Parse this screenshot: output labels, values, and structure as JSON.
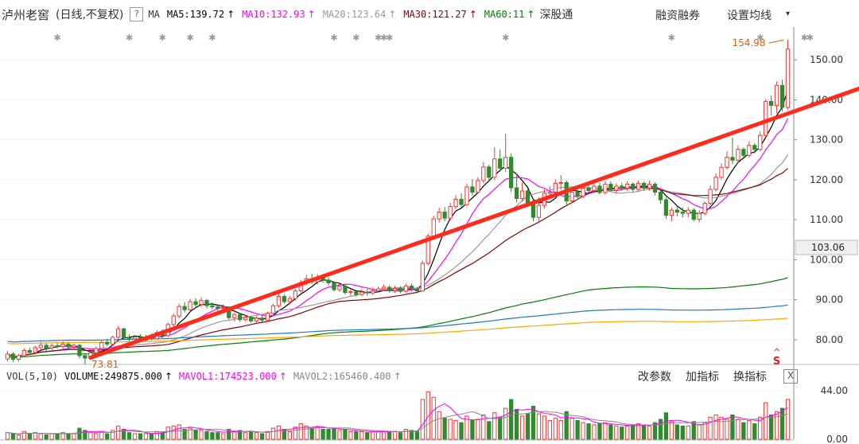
{
  "header": {
    "stock_name": "泸州老窖",
    "chart_mode": "(日线,不复权)",
    "help_label": "?",
    "ma_label": "MA",
    "ma_items": [
      {
        "label": "MA5:139.72",
        "color": "#000000"
      },
      {
        "label": "MA10:132.93",
        "color": "#ff00ff"
      },
      {
        "label": "MA20:123.64",
        "color": "#999999"
      },
      {
        "label": "MA30:121.27",
        "color": "#8b0000"
      },
      {
        "label": "MA60:11",
        "color": "#008000"
      }
    ],
    "arrow_glyph": "↑",
    "links": [
      "深股通",
      "融资融券",
      "设置均线"
    ],
    "caret": "▾"
  },
  "price_axis": {
    "ticks": [
      "150.00",
      "140.00",
      "130.00",
      "120.00",
      "110.00",
      "100.00",
      "90.00",
      "80.00"
    ],
    "current_price": "103.06"
  },
  "annotations": {
    "high_label": "154.98",
    "low_label": "73.81",
    "signal_marker": "S",
    "signal_caret": "^"
  },
  "volume_panel": {
    "items": [
      {
        "label": "VOL(5,10)",
        "color": "#333333"
      },
      {
        "label": "VOLUME:249875.000",
        "color": "#000000"
      },
      {
        "label": "MAVOL1:174523.000",
        "color": "#ff00ff"
      },
      {
        "label": "MAVOL2:165460.400",
        "color": "#888888"
      }
    ],
    "arrow_glyph": "↑",
    "actions": [
      "改参数",
      "加指标",
      "换指标"
    ],
    "close_label": "X",
    "axis_ticks": [
      "44.00",
      "0.00"
    ]
  },
  "chart_data": {
    "type": "candlestick",
    "symbol": "泸州老窖",
    "period": "日线",
    "price_axis": {
      "min": 75,
      "max": 157,
      "ticks": [
        80,
        90,
        100,
        110,
        120,
        130,
        140,
        150
      ]
    },
    "volume_axis": {
      "min": 0,
      "max": 49,
      "ticks": [
        0,
        44
      ]
    },
    "highest_price": 154.98,
    "lowest_price": 73.81,
    "current_price": 103.06,
    "trend_arrow": {
      "start": [
        15,
        75.5
      ],
      "end": [
        165,
        148
      ]
    },
    "candles": [
      {
        "o": 75.2,
        "c": 76.4,
        "h": 77.1,
        "l": 74.6,
        "v": 6
      },
      {
        "o": 76.4,
        "c": 75.1,
        "h": 76.9,
        "l": 74.4,
        "v": 5
      },
      {
        "o": 75.1,
        "c": 76.0,
        "h": 76.5,
        "l": 74.5,
        "v": 4
      },
      {
        "o": 76.0,
        "c": 77.3,
        "h": 77.8,
        "l": 75.6,
        "v": 7
      },
      {
        "o": 77.3,
        "c": 76.8,
        "h": 78.0,
        "l": 76.1,
        "v": 5
      },
      {
        "o": 76.8,
        "c": 78.0,
        "h": 78.5,
        "l": 76.3,
        "v": 6
      },
      {
        "o": 78.0,
        "c": 78.6,
        "h": 79.4,
        "l": 77.5,
        "v": 5
      },
      {
        "o": 78.6,
        "c": 77.9,
        "h": 79.1,
        "l": 77.2,
        "v": 4
      },
      {
        "o": 77.9,
        "c": 78.5,
        "h": 79.0,
        "l": 77.4,
        "v": 5
      },
      {
        "o": 78.5,
        "c": 78.3,
        "h": 79.2,
        "l": 77.8,
        "v": 5
      },
      {
        "o": 78.3,
        "c": 78.9,
        "h": 79.6,
        "l": 77.6,
        "v": 6
      },
      {
        "o": 78.9,
        "c": 78.2,
        "h": 79.3,
        "l": 77.7,
        "v": 5
      },
      {
        "o": 78.2,
        "c": 78.6,
        "h": 79.0,
        "l": 77.4,
        "v": 5
      },
      {
        "o": 78.6,
        "c": 76.0,
        "h": 78.9,
        "l": 75.3,
        "v": 10
      },
      {
        "o": 76.0,
        "c": 75.4,
        "h": 76.6,
        "l": 73.81,
        "v": 8
      },
      {
        "o": 75.4,
        "c": 76.7,
        "h": 77.2,
        "l": 74.9,
        "v": 6
      },
      {
        "o": 76.7,
        "c": 77.8,
        "h": 78.3,
        "l": 76.2,
        "v": 5
      },
      {
        "o": 77.8,
        "c": 79.3,
        "h": 80.0,
        "l": 77.4,
        "v": 7
      },
      {
        "o": 79.3,
        "c": 78.9,
        "h": 80.2,
        "l": 78.3,
        "v": 5
      },
      {
        "o": 78.9,
        "c": 80.6,
        "h": 81.0,
        "l": 78.4,
        "v": 8
      },
      {
        "o": 80.6,
        "c": 82.7,
        "h": 83.4,
        "l": 80.1,
        "v": 12
      },
      {
        "o": 82.7,
        "c": 80.5,
        "h": 83.0,
        "l": 80.0,
        "v": 9
      },
      {
        "o": 80.5,
        "c": 80.2,
        "h": 81.3,
        "l": 79.6,
        "v": 6
      },
      {
        "o": 80.2,
        "c": 80.6,
        "h": 81.2,
        "l": 79.7,
        "v": 5
      },
      {
        "o": 80.6,
        "c": 79.9,
        "h": 81.4,
        "l": 79.4,
        "v": 5
      },
      {
        "o": 79.9,
        "c": 80.7,
        "h": 81.2,
        "l": 79.5,
        "v": 5
      },
      {
        "o": 80.7,
        "c": 80.2,
        "h": 81.5,
        "l": 79.8,
        "v": 5
      },
      {
        "o": 80.2,
        "c": 81.8,
        "h": 82.4,
        "l": 79.9,
        "v": 7
      },
      {
        "o": 81.8,
        "c": 81.0,
        "h": 82.6,
        "l": 80.4,
        "v": 6
      },
      {
        "o": 81.0,
        "c": 83.8,
        "h": 84.3,
        "l": 80.6,
        "v": 11
      },
      {
        "o": 83.8,
        "c": 85.9,
        "h": 86.5,
        "l": 83.2,
        "v": 12
      },
      {
        "o": 85.9,
        "c": 88.3,
        "h": 89.0,
        "l": 85.3,
        "v": 13
      },
      {
        "o": 88.3,
        "c": 87.5,
        "h": 89.4,
        "l": 86.8,
        "v": 9
      },
      {
        "o": 87.5,
        "c": 89.5,
        "h": 90.2,
        "l": 87.0,
        "v": 10
      },
      {
        "o": 89.5,
        "c": 88.8,
        "h": 90.4,
        "l": 88.0,
        "v": 8
      },
      {
        "o": 88.8,
        "c": 89.8,
        "h": 90.6,
        "l": 88.2,
        "v": 8
      },
      {
        "o": 89.8,
        "c": 88.5,
        "h": 90.2,
        "l": 87.8,
        "v": 7
      },
      {
        "o": 88.5,
        "c": 88.2,
        "h": 89.3,
        "l": 87.6,
        "v": 6
      },
      {
        "o": 88.2,
        "c": 87.8,
        "h": 88.9,
        "l": 87.2,
        "v": 6
      },
      {
        "o": 87.8,
        "c": 88.0,
        "h": 88.8,
        "l": 87.0,
        "v": 5
      },
      {
        "o": 88.0,
        "c": 85.5,
        "h": 88.3,
        "l": 85.0,
        "v": 9
      },
      {
        "o": 85.5,
        "c": 86.3,
        "h": 86.8,
        "l": 84.6,
        "v": 7
      },
      {
        "o": 86.3,
        "c": 85.0,
        "h": 86.7,
        "l": 84.4,
        "v": 8
      },
      {
        "o": 85.0,
        "c": 85.6,
        "h": 86.2,
        "l": 84.6,
        "v": 6
      },
      {
        "o": 85.6,
        "c": 84.7,
        "h": 86.0,
        "l": 84.2,
        "v": 7
      },
      {
        "o": 84.7,
        "c": 85.4,
        "h": 85.9,
        "l": 84.3,
        "v": 6
      },
      {
        "o": 85.4,
        "c": 84.9,
        "h": 86.1,
        "l": 84.4,
        "v": 5
      },
      {
        "o": 84.9,
        "c": 86.6,
        "h": 87.0,
        "l": 84.5,
        "v": 7
      },
      {
        "o": 86.6,
        "c": 88.5,
        "h": 89.0,
        "l": 86.2,
        "v": 10
      },
      {
        "o": 88.5,
        "c": 90.8,
        "h": 91.5,
        "l": 88.0,
        "v": 12
      },
      {
        "o": 90.8,
        "c": 89.5,
        "h": 91.4,
        "l": 89.0,
        "v": 9
      },
      {
        "o": 89.5,
        "c": 90.3,
        "h": 90.9,
        "l": 88.8,
        "v": 7
      },
      {
        "o": 90.3,
        "c": 92.2,
        "h": 92.8,
        "l": 89.7,
        "v": 11
      },
      {
        "o": 92.2,
        "c": 94.3,
        "h": 95.0,
        "l": 91.8,
        "v": 14
      },
      {
        "o": 94.3,
        "c": 95.2,
        "h": 96.2,
        "l": 93.6,
        "v": 12
      },
      {
        "o": 95.2,
        "c": 94.5,
        "h": 96.5,
        "l": 93.9,
        "v": 10
      },
      {
        "o": 94.5,
        "c": 95.6,
        "h": 96.4,
        "l": 93.8,
        "v": 11
      },
      {
        "o": 95.6,
        "c": 94.9,
        "h": 96.2,
        "l": 94.3,
        "v": 9
      },
      {
        "o": 94.9,
        "c": 94.2,
        "h": 95.6,
        "l": 93.5,
        "v": 9
      },
      {
        "o": 94.2,
        "c": 92.5,
        "h": 94.6,
        "l": 92.0,
        "v": 10
      },
      {
        "o": 92.5,
        "c": 93.4,
        "h": 94.0,
        "l": 92.0,
        "v": 8
      },
      {
        "o": 93.4,
        "c": 91.8,
        "h": 93.8,
        "l": 91.3,
        "v": 9
      },
      {
        "o": 91.8,
        "c": 92.0,
        "h": 92.6,
        "l": 91.0,
        "v": 7
      },
      {
        "o": 92.0,
        "c": 91.3,
        "h": 92.5,
        "l": 90.8,
        "v": 7
      },
      {
        "o": 91.3,
        "c": 91.9,
        "h": 92.6,
        "l": 90.9,
        "v": 7
      },
      {
        "o": 91.9,
        "c": 91.7,
        "h": 92.7,
        "l": 91.0,
        "v": 6
      },
      {
        "o": 91.7,
        "c": 92.2,
        "h": 93.0,
        "l": 91.2,
        "v": 7
      },
      {
        "o": 92.2,
        "c": 92.7,
        "h": 93.3,
        "l": 91.7,
        "v": 7
      },
      {
        "o": 92.7,
        "c": 93.1,
        "h": 93.8,
        "l": 92.2,
        "v": 7
      },
      {
        "o": 93.1,
        "c": 92.3,
        "h": 93.6,
        "l": 91.8,
        "v": 7
      },
      {
        "o": 92.3,
        "c": 92.8,
        "h": 93.5,
        "l": 91.7,
        "v": 7
      },
      {
        "o": 92.8,
        "c": 92.1,
        "h": 93.4,
        "l": 91.6,
        "v": 6
      },
      {
        "o": 92.1,
        "c": 93.4,
        "h": 94.0,
        "l": 91.8,
        "v": 9
      },
      {
        "o": 93.4,
        "c": 92.6,
        "h": 94.1,
        "l": 92.0,
        "v": 8
      },
      {
        "o": 92.6,
        "c": 92.2,
        "h": 93.2,
        "l": 91.6,
        "v": 7
      },
      {
        "o": 92.2,
        "c": 99.1,
        "h": 99.8,
        "l": 92.0,
        "v": 36
      },
      {
        "o": 99.1,
        "c": 105.9,
        "h": 106.5,
        "l": 98.6,
        "v": 43
      },
      {
        "o": 105.9,
        "c": 110.2,
        "h": 111.0,
        "l": 105.1,
        "v": 38
      },
      {
        "o": 110.2,
        "c": 111.9,
        "h": 113.0,
        "l": 109.3,
        "v": 25
      },
      {
        "o": 111.9,
        "c": 110.4,
        "h": 113.2,
        "l": 109.6,
        "v": 19
      },
      {
        "o": 110.4,
        "c": 113.3,
        "h": 114.2,
        "l": 109.8,
        "v": 18
      },
      {
        "o": 113.3,
        "c": 115.1,
        "h": 116.1,
        "l": 112.6,
        "v": 17
      },
      {
        "o": 115.1,
        "c": 113.8,
        "h": 116.6,
        "l": 113.1,
        "v": 15
      },
      {
        "o": 113.8,
        "c": 118.2,
        "h": 119.0,
        "l": 113.3,
        "v": 21
      },
      {
        "o": 118.2,
        "c": 116.9,
        "h": 120.2,
        "l": 116.0,
        "v": 17
      },
      {
        "o": 116.9,
        "c": 119.8,
        "h": 120.6,
        "l": 116.5,
        "v": 18
      },
      {
        "o": 119.8,
        "c": 123.2,
        "h": 124.5,
        "l": 119.1,
        "v": 22
      },
      {
        "o": 123.2,
        "c": 120.6,
        "h": 123.8,
        "l": 119.7,
        "v": 16
      },
      {
        "o": 120.6,
        "c": 125.2,
        "h": 128.1,
        "l": 119.9,
        "v": 24
      },
      {
        "o": 125.2,
        "c": 122.9,
        "h": 127.6,
        "l": 122.0,
        "v": 20
      },
      {
        "o": 122.9,
        "c": 125.6,
        "h": 131.5,
        "l": 121.9,
        "v": 28
      },
      {
        "o": 125.6,
        "c": 118.0,
        "h": 126.6,
        "l": 116.9,
        "v": 36
      },
      {
        "o": 118.0,
        "c": 115.3,
        "h": 121.6,
        "l": 114.3,
        "v": 27
      },
      {
        "o": 115.3,
        "c": 117.2,
        "h": 119.3,
        "l": 114.6,
        "v": 21
      },
      {
        "o": 117.2,
        "c": 114.2,
        "h": 117.7,
        "l": 113.2,
        "v": 23
      },
      {
        "o": 114.2,
        "c": 110.6,
        "h": 115.1,
        "l": 109.6,
        "v": 30
      },
      {
        "o": 110.6,
        "c": 113.6,
        "h": 115.6,
        "l": 109.1,
        "v": 23
      },
      {
        "o": 113.6,
        "c": 116.6,
        "h": 117.6,
        "l": 112.8,
        "v": 21
      },
      {
        "o": 116.6,
        "c": 116.9,
        "h": 118.4,
        "l": 115.1,
        "v": 17
      },
      {
        "o": 116.9,
        "c": 119.1,
        "h": 120.1,
        "l": 116.1,
        "v": 19
      },
      {
        "o": 119.1,
        "c": 119.3,
        "h": 121.2,
        "l": 117.5,
        "v": 17
      },
      {
        "o": 119.3,
        "c": 114.7,
        "h": 119.9,
        "l": 113.7,
        "v": 25
      },
      {
        "o": 114.7,
        "c": 116.9,
        "h": 118.0,
        "l": 114.1,
        "v": 19
      },
      {
        "o": 116.9,
        "c": 115.9,
        "h": 118.0,
        "l": 115.0,
        "v": 17
      },
      {
        "o": 115.9,
        "c": 117.9,
        "h": 118.6,
        "l": 115.4,
        "v": 15
      },
      {
        "o": 117.9,
        "c": 117.3,
        "h": 119.2,
        "l": 116.6,
        "v": 14
      },
      {
        "o": 117.3,
        "c": 118.4,
        "h": 119.0,
        "l": 116.6,
        "v": 13
      },
      {
        "o": 118.4,
        "c": 116.8,
        "h": 119.3,
        "l": 116.3,
        "v": 14
      },
      {
        "o": 116.8,
        "c": 118.9,
        "h": 119.6,
        "l": 116.3,
        "v": 15
      },
      {
        "o": 118.9,
        "c": 117.4,
        "h": 119.6,
        "l": 116.9,
        "v": 13
      },
      {
        "o": 117.4,
        "c": 118.4,
        "h": 119.1,
        "l": 116.6,
        "v": 12
      },
      {
        "o": 118.4,
        "c": 117.9,
        "h": 119.3,
        "l": 117.2,
        "v": 11
      },
      {
        "o": 117.9,
        "c": 118.9,
        "h": 119.6,
        "l": 117.2,
        "v": 12
      },
      {
        "o": 118.9,
        "c": 117.6,
        "h": 119.4,
        "l": 116.9,
        "v": 13
      },
      {
        "o": 117.6,
        "c": 119.1,
        "h": 119.8,
        "l": 117.1,
        "v": 14
      },
      {
        "o": 119.1,
        "c": 117.9,
        "h": 119.6,
        "l": 117.2,
        "v": 13
      },
      {
        "o": 117.9,
        "c": 118.9,
        "h": 119.8,
        "l": 117.3,
        "v": 12
      },
      {
        "o": 118.9,
        "c": 116.9,
        "h": 119.4,
        "l": 116.1,
        "v": 15
      },
      {
        "o": 116.9,
        "c": 115.0,
        "h": 117.4,
        "l": 114.0,
        "v": 18
      },
      {
        "o": 115.0,
        "c": 111.1,
        "h": 115.6,
        "l": 110.2,
        "v": 24
      },
      {
        "o": 111.1,
        "c": 112.4,
        "h": 113.1,
        "l": 109.6,
        "v": 16
      },
      {
        "o": 112.4,
        "c": 111.9,
        "h": 113.6,
        "l": 110.8,
        "v": 13
      },
      {
        "o": 111.9,
        "c": 111.6,
        "h": 113.1,
        "l": 110.6,
        "v": 12
      },
      {
        "o": 111.6,
        "c": 112.4,
        "h": 113.1,
        "l": 110.6,
        "v": 12
      },
      {
        "o": 112.4,
        "c": 110.1,
        "h": 112.9,
        "l": 109.6,
        "v": 16
      },
      {
        "o": 110.1,
        "c": 111.6,
        "h": 112.4,
        "l": 109.4,
        "v": 13
      },
      {
        "o": 111.6,
        "c": 114.1,
        "h": 114.6,
        "l": 111.1,
        "v": 15
      },
      {
        "o": 114.1,
        "c": 117.6,
        "h": 118.6,
        "l": 113.6,
        "v": 20
      },
      {
        "o": 117.6,
        "c": 120.6,
        "h": 121.6,
        "l": 117.1,
        "v": 22
      },
      {
        "o": 120.6,
        "c": 123.1,
        "h": 124.1,
        "l": 120.1,
        "v": 20
      },
      {
        "o": 123.1,
        "c": 125.6,
        "h": 127.1,
        "l": 122.6,
        "v": 18
      },
      {
        "o": 125.6,
        "c": 124.9,
        "h": 130.6,
        "l": 123.9,
        "v": 22
      },
      {
        "o": 124.9,
        "c": 127.6,
        "h": 128.6,
        "l": 124.1,
        "v": 18
      },
      {
        "o": 127.6,
        "c": 126.1,
        "h": 128.1,
        "l": 125.1,
        "v": 15
      },
      {
        "o": 126.1,
        "c": 128.6,
        "h": 129.6,
        "l": 125.6,
        "v": 17
      },
      {
        "o": 128.6,
        "c": 127.6,
        "h": 129.1,
        "l": 126.6,
        "v": 14
      },
      {
        "o": 127.6,
        "c": 131.1,
        "h": 132.1,
        "l": 127.1,
        "v": 20
      },
      {
        "o": 131.1,
        "c": 139.6,
        "h": 140.1,
        "l": 130.6,
        "v": 33
      },
      {
        "o": 139.6,
        "c": 138.6,
        "h": 141.1,
        "l": 136.1,
        "v": 22
      },
      {
        "o": 138.6,
        "c": 143.6,
        "h": 144.6,
        "l": 136.6,
        "v": 25
      },
      {
        "o": 143.6,
        "c": 138.1,
        "h": 145.1,
        "l": 137.1,
        "v": 28
      },
      {
        "o": 138.1,
        "c": 152.7,
        "h": 154.98,
        "l": 137.6,
        "v": 36
      }
    ],
    "moving_averages": [
      {
        "name": "MA5",
        "period": 5,
        "color": "#000000"
      },
      {
        "name": "MA10",
        "period": 10,
        "color": "#ff00ff"
      },
      {
        "name": "MA20",
        "period": 20,
        "color": "#999999"
      },
      {
        "name": "MA30",
        "period": 30,
        "color": "#8b0000"
      },
      {
        "name": "MA60",
        "period": 60,
        "color": "#008000"
      },
      {
        "name": "MA120",
        "period": 120,
        "color": "#1e78c8"
      },
      {
        "name": "MA250",
        "period": 250,
        "color": "#ffa500"
      }
    ],
    "volume_mas": [
      {
        "name": "MAVOL1",
        "period": 5,
        "color": "#ff00ff"
      },
      {
        "name": "MAVOL2",
        "period": 10,
        "color": "#888888"
      }
    ],
    "colors": {
      "up": "#ff3333",
      "down": "#2e8b2e",
      "arrow": "#ff2a1a",
      "grid": "#d0d0d0"
    }
  }
}
